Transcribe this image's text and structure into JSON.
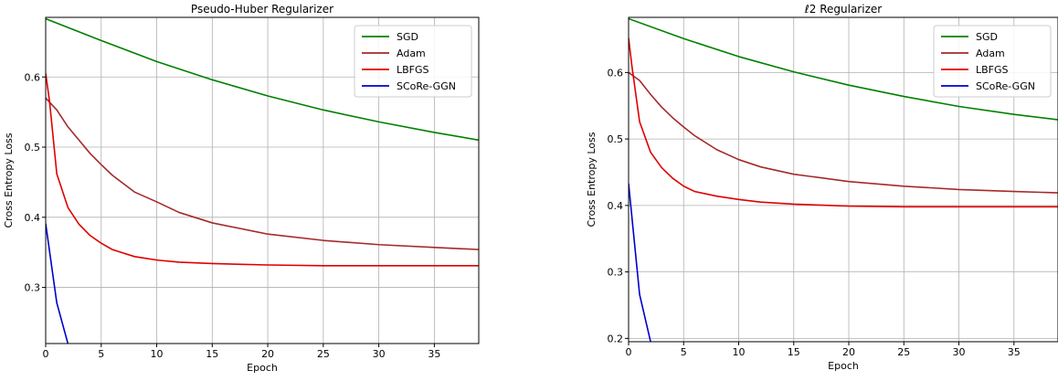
{
  "chart_data": [
    {
      "type": "line",
      "title": "Pseudo-Huber Regularizer",
      "xlabel": "Epoch",
      "ylabel": "Cross Entropy Loss",
      "xlim": [
        0,
        39
      ],
      "ylim": [
        0.22,
        0.685
      ],
      "xticks": [
        0,
        5,
        10,
        15,
        20,
        25,
        30,
        35
      ],
      "yticks": [
        0.3,
        0.4,
        0.5,
        0.6
      ],
      "grid": true,
      "legend_position": "top-right",
      "series": [
        {
          "name": "SGD",
          "color": "#008000",
          "x": [
            0,
            5,
            10,
            15,
            20,
            25,
            30,
            35,
            39
          ],
          "y": [
            0.683,
            0.652,
            0.622,
            0.596,
            0.573,
            0.553,
            0.536,
            0.521,
            0.51
          ]
        },
        {
          "name": "Adam",
          "color": "#a52a2a",
          "x": [
            0,
            1,
            2,
            3,
            4,
            5,
            6,
            8,
            10,
            12,
            15,
            20,
            25,
            30,
            35,
            39
          ],
          "y": [
            0.57,
            0.553,
            0.529,
            0.51,
            0.491,
            0.475,
            0.46,
            0.436,
            0.422,
            0.407,
            0.392,
            0.376,
            0.367,
            0.361,
            0.357,
            0.354
          ]
        },
        {
          "name": "LBFGS",
          "color": "#e00000",
          "x": [
            0,
            0.35,
            1,
            2,
            3,
            4,
            5,
            6,
            8,
            10,
            12,
            15,
            20,
            25,
            30,
            39
          ],
          "y": [
            0.605,
            0.565,
            0.462,
            0.414,
            0.39,
            0.374,
            0.363,
            0.354,
            0.344,
            0.339,
            0.336,
            0.334,
            0.332,
            0.331,
            0.331,
            0.331
          ]
        },
        {
          "name": "SCoRe-GGN",
          "color": "#0000cc",
          "x": [
            0,
            1,
            2
          ],
          "y": [
            0.391,
            0.278,
            0.22
          ]
        }
      ]
    },
    {
      "type": "line",
      "title": "ℓ2 Regularizer",
      "xlabel": "Epoch",
      "ylabel": "Cross Entropy Loss",
      "xlim": [
        0,
        39
      ],
      "ylim": [
        0.195,
        0.683
      ],
      "xticks": [
        0,
        5,
        10,
        15,
        20,
        25,
        30,
        35
      ],
      "yticks": [
        0.2,
        0.3,
        0.4,
        0.5,
        0.6
      ],
      "grid": true,
      "legend_position": "top-right",
      "series": [
        {
          "name": "SGD",
          "color": "#008000",
          "x": [
            0,
            5,
            10,
            15,
            20,
            25,
            30,
            35,
            39
          ],
          "y": [
            0.681,
            0.651,
            0.624,
            0.601,
            0.581,
            0.564,
            0.549,
            0.537,
            0.529
          ]
        },
        {
          "name": "Adam",
          "color": "#a52a2a",
          "x": [
            0,
            1,
            2,
            3,
            4,
            5,
            6,
            8,
            10,
            12,
            15,
            20,
            25,
            30,
            35,
            39
          ],
          "y": [
            0.6,
            0.588,
            0.567,
            0.548,
            0.532,
            0.518,
            0.505,
            0.484,
            0.469,
            0.458,
            0.447,
            0.436,
            0.429,
            0.424,
            0.421,
            0.419
          ]
        },
        {
          "name": "LBFGS",
          "color": "#e00000",
          "x": [
            0,
            0.3,
            1,
            2,
            3,
            4,
            5,
            6,
            8,
            10,
            12,
            15,
            20,
            25,
            30,
            39
          ],
          "y": [
            0.652,
            0.61,
            0.526,
            0.48,
            0.457,
            0.441,
            0.429,
            0.421,
            0.414,
            0.409,
            0.405,
            0.402,
            0.399,
            0.398,
            0.398,
            0.398
          ]
        },
        {
          "name": "SCoRe-GGN",
          "color": "#0000cc",
          "x": [
            0,
            1,
            2
          ],
          "y": [
            0.433,
            0.266,
            0.195
          ]
        }
      ]
    }
  ]
}
